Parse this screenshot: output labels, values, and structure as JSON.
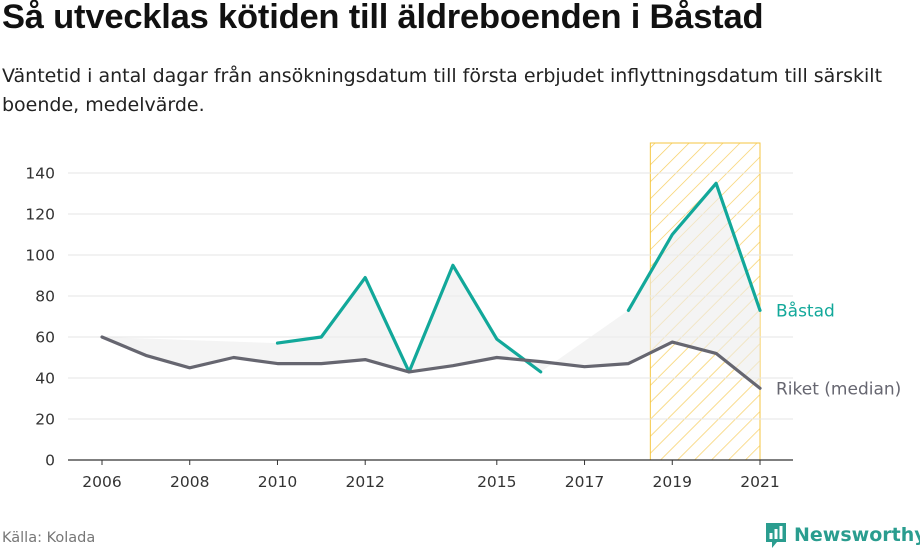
{
  "header": {
    "title": "Så utvecklas kötiden till äldreboenden i Båstad",
    "subtitle": "Väntetid i antal dagar från ansökningsdatum till första erbjudet inflyttningsdatum till särskilt boende, medelvärde."
  },
  "footer": {
    "source": "Källa: Kolada",
    "brand": "Newsworthy"
  },
  "colors": {
    "bastad": "#12a89a",
    "riket": "#666670",
    "highlight": "#f5c642",
    "band": "#ececec"
  },
  "chart_data": {
    "type": "line",
    "x_tick_labels": [
      "2006",
      "2008",
      "2010",
      "2012",
      "2015",
      "2017",
      "2019",
      "2021"
    ],
    "y_tick_labels": [
      "0",
      "20",
      "40",
      "60",
      "80",
      "100",
      "120",
      "140"
    ],
    "xlim": [
      2006,
      2021
    ],
    "ylim": [
      0,
      140
    ],
    "highlight_range": [
      2018.5,
      2021
    ],
    "grid": "horizontal",
    "series": [
      {
        "name": "Båstad",
        "x": [
          2010,
          2011,
          2012,
          2013,
          2014,
          2015,
          2016,
          2017,
          2018,
          2019,
          2020,
          2021
        ],
        "values": [
          57,
          60,
          89,
          43,
          95,
          59,
          43,
          null,
          73,
          110,
          135,
          73
        ]
      },
      {
        "name": "Riket (median)",
        "x": [
          2006,
          2007,
          2008,
          2009,
          2010,
          2011,
          2012,
          2013,
          2014,
          2015,
          2016,
          2017,
          2018,
          2019,
          2020,
          2021
        ],
        "values": [
          60,
          51,
          45,
          50,
          47,
          47,
          49,
          43,
          46,
          50,
          48,
          45.5,
          47,
          57.5,
          52,
          35
        ]
      }
    ]
  }
}
